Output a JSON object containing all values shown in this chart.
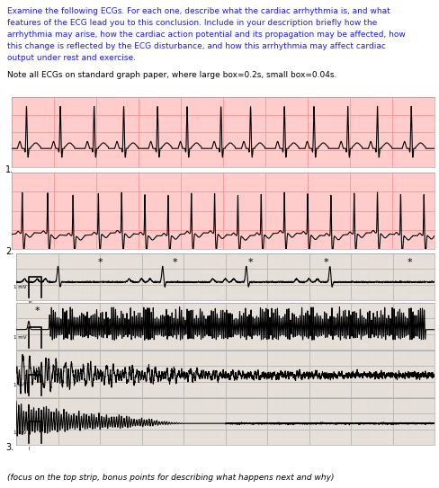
{
  "title_text": [
    "Examine the following ECGs. For each one, describe what the cardiac arrhythmia is, and what",
    "features of the ECG lead you to this conclusion. Include in your description briefly how the",
    "arrhythmia may arise, how the cardiac action potential and its propagation may be affected, how",
    "this change is reflected by the ECG disturbance, and how this arrhythmia may affect cardiac",
    "output under rest and exercise."
  ],
  "note_text": "Note all ECGs on standard graph paper, where large box=0.2s, small box=0.04s.",
  "footer_text": "(focus on the top strip, bonus points for describing what happens next and why)",
  "text_color": "#1a1aff",
  "note_color": "#000000",
  "bg_color": "#ffffff",
  "ecg1_bg": "#ffcccc",
  "ecg2_bg": "#ffcccc",
  "ecg3_bg": "#e8e0d8",
  "grid_major_color": "#ff9999",
  "grid_minor_color": "#ffbbbb",
  "strip_border": "#aaaaaa"
}
